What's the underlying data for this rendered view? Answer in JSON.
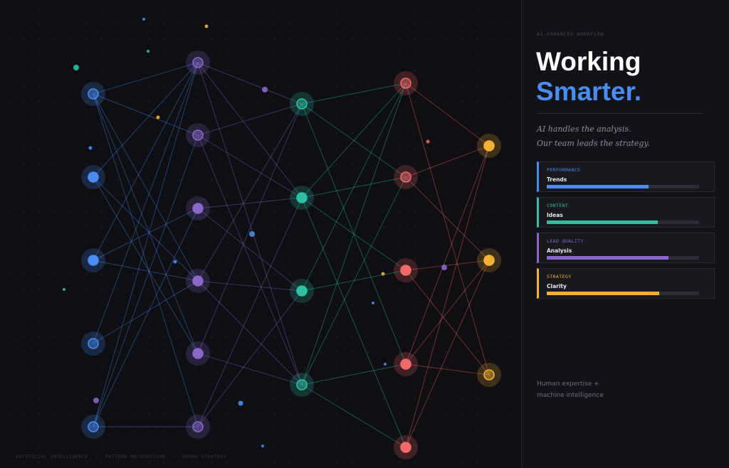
{
  "network": {
    "layers": [
      {
        "color": "#4a8cf0",
        "nodes": [
          {
            "id": "a0",
            "bright": false
          },
          {
            "id": "a1",
            "bright": true
          },
          {
            "id": "a2",
            "bright": true
          },
          {
            "id": "a3",
            "bright": false
          },
          {
            "id": "a4",
            "bright": false
          }
        ]
      },
      {
        "color": "#8a68c8",
        "nodes": [
          {
            "id": "b0",
            "bright": false
          },
          {
            "id": "b1",
            "bright": false
          },
          {
            "id": "b2",
            "bright": true
          },
          {
            "id": "b3",
            "bright": true
          },
          {
            "id": "b4",
            "bright": true
          },
          {
            "id": "b5",
            "bright": false
          }
        ]
      },
      {
        "color": "#2ec2a2",
        "nodes": [
          {
            "id": "c0",
            "bright": false
          },
          {
            "id": "c1",
            "bright": true
          },
          {
            "id": "c2",
            "bright": true
          },
          {
            "id": "c3",
            "bright": false
          }
        ]
      },
      {
        "color": "#f26a6a",
        "nodes": [
          {
            "id": "d0",
            "bright": false
          },
          {
            "id": "d1",
            "bright": false
          },
          {
            "id": "d2",
            "bright": true
          },
          {
            "id": "d3",
            "bright": true
          },
          {
            "id": "d4",
            "bright": true
          }
        ]
      },
      {
        "color": "#f2b233",
        "nodes": [
          {
            "id": "e0",
            "bright": true
          },
          {
            "id": "e1",
            "bright": true
          },
          {
            "id": "e2",
            "bright": false
          }
        ]
      }
    ]
  },
  "footer_tags": [
    "ARTIFICIAL INTELLIGENCE",
    "PATTERN RECOGNITION",
    "HUMAN STRATEGY"
  ],
  "panel": {
    "eyebrow": "AI-ENHANCED WORKFLOW",
    "title_line1": "Working",
    "title_line2": "Smarter.",
    "tagline_line1": "AI handles the analysis.",
    "tagline_line2": "Our team leads the strategy.",
    "cards": [
      {
        "category": "PERFORMANCE",
        "name": "Trends",
        "fill": 0.67,
        "color": "#4a8cf0"
      },
      {
        "category": "CONTENT",
        "name": "Ideas",
        "fill": 0.73,
        "color": "#2ec2a2"
      },
      {
        "category": "LEAD QUALITY",
        "name": "Analysis",
        "fill": 0.8,
        "color": "#8a68c8"
      },
      {
        "category": "STRATEGY",
        "name": "Clarity",
        "fill": 0.74,
        "color": "#f2b233"
      }
    ],
    "footer_line1": "Human expertise +",
    "footer_line2": "machine intelligence"
  }
}
